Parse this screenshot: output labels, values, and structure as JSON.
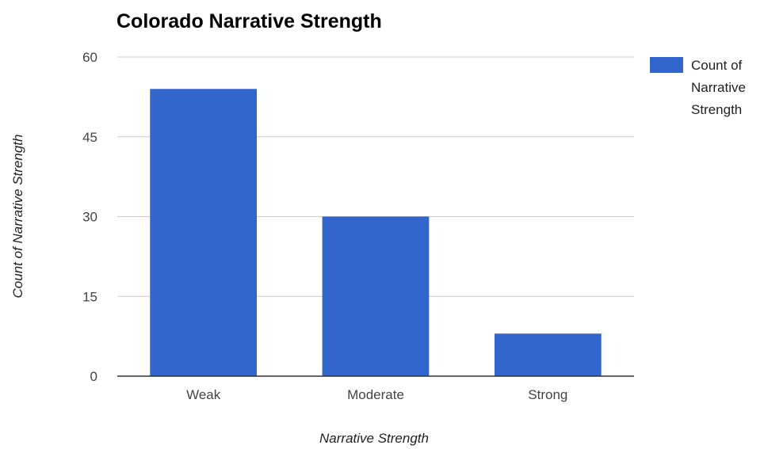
{
  "chart_data": {
    "type": "bar",
    "title": "Colorado Narrative Strength",
    "xlabel": "Narrative Strength",
    "ylabel": "Count of Narrative Strength",
    "categories": [
      "Weak",
      "Moderate",
      "Strong"
    ],
    "series": [
      {
        "name": "Count of Narrative Strength",
        "values": [
          54,
          30,
          8
        ]
      }
    ],
    "ylim": [
      0,
      60
    ],
    "yticks": [
      0,
      15,
      30,
      45,
      60
    ],
    "grid": true,
    "legend_position": "right",
    "legend_lines": [
      "Count of",
      "Narrative",
      "Strength"
    ],
    "bar_color": "#3366cc"
  }
}
